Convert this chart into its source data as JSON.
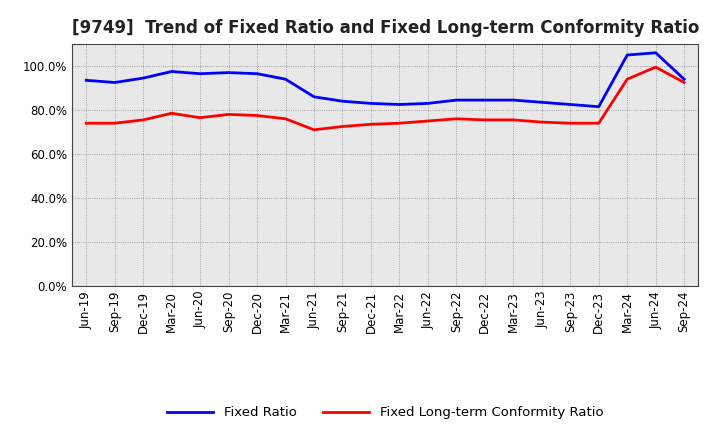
{
  "title": "[9749]  Trend of Fixed Ratio and Fixed Long-term Conformity Ratio",
  "x_labels": [
    "Jun-19",
    "Sep-19",
    "Dec-19",
    "Mar-20",
    "Jun-20",
    "Sep-20",
    "Dec-20",
    "Mar-21",
    "Jun-21",
    "Sep-21",
    "Dec-21",
    "Mar-22",
    "Jun-22",
    "Sep-22",
    "Dec-22",
    "Mar-23",
    "Jun-23",
    "Sep-23",
    "Dec-23",
    "Mar-24",
    "Jun-24",
    "Sep-24"
  ],
  "fixed_ratio": [
    93.5,
    92.5,
    94.5,
    97.5,
    96.5,
    97.0,
    96.5,
    94.0,
    86.0,
    84.0,
    83.0,
    82.5,
    83.0,
    84.5,
    84.5,
    84.5,
    83.5,
    82.5,
    81.5,
    105.0,
    106.0,
    94.0
  ],
  "fixed_lt_ratio": [
    74.0,
    74.0,
    75.5,
    78.5,
    76.5,
    78.0,
    77.5,
    76.0,
    71.0,
    72.5,
    73.5,
    74.0,
    75.0,
    76.0,
    75.5,
    75.5,
    74.5,
    74.0,
    74.0,
    94.0,
    99.5,
    92.5
  ],
  "ylim": [
    0,
    110
  ],
  "yticks": [
    0,
    20,
    40,
    60,
    80,
    100
  ],
  "ytick_labels": [
    "0.0%",
    "20.0%",
    "40.0%",
    "60.0%",
    "80.0%",
    "100.0%"
  ],
  "blue_color": "#0000FF",
  "red_color": "#FF0000",
  "grid_color": "#888888",
  "plot_bg_color": "#E8E8E8",
  "fig_bg_color": "#FFFFFF",
  "legend_fixed": "Fixed Ratio",
  "legend_lt": "Fixed Long-term Conformity Ratio",
  "title_fontsize": 12,
  "axis_fontsize": 8.5,
  "legend_fontsize": 9.5
}
